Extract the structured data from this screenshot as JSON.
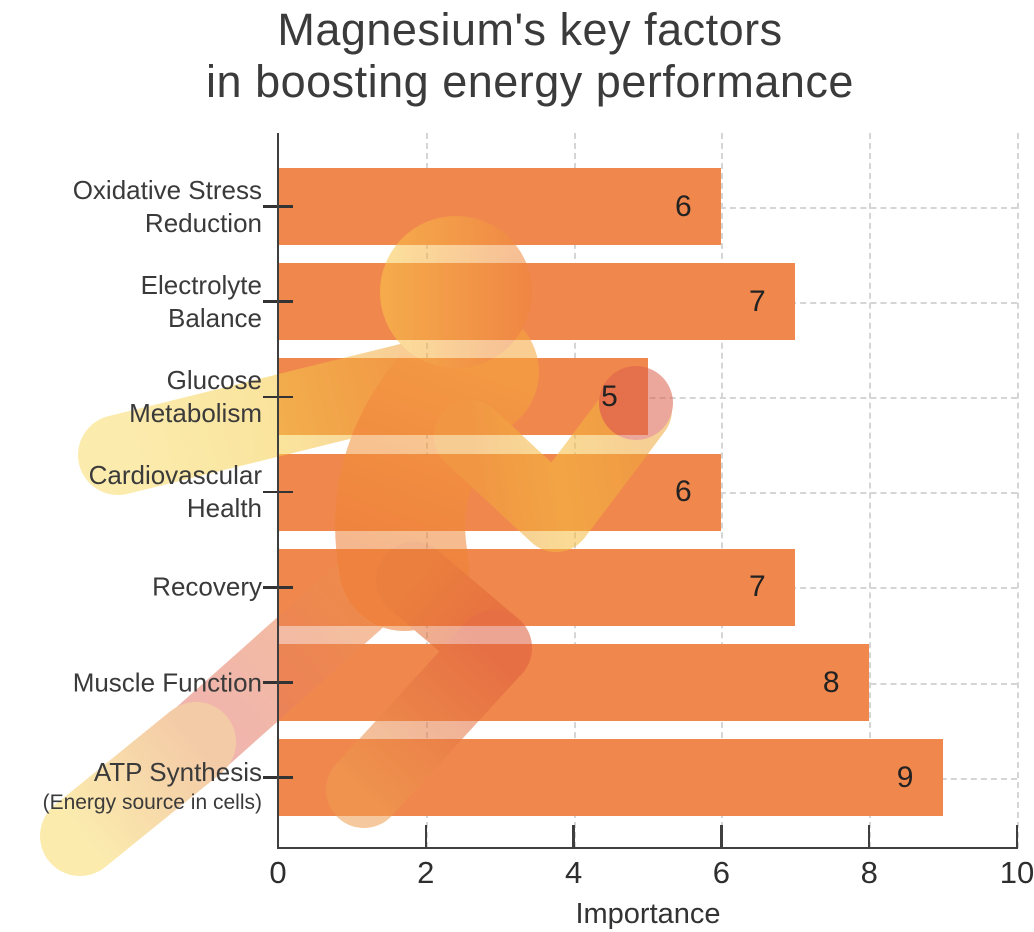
{
  "title": {
    "line1": "Magnesium's key factors",
    "line2": "in boosting energy performance"
  },
  "chart_data": {
    "type": "bar",
    "orientation": "horizontal",
    "title": "Magnesium's key factors in boosting energy performance",
    "xlabel": "Importance",
    "xlim": [
      0,
      10
    ],
    "xticks": [
      0,
      2,
      4,
      6,
      8,
      10
    ],
    "grid": {
      "style": "dashed",
      "vertical": true,
      "horizontal": true,
      "color": "#d5d5d5"
    },
    "bar_color": "#F0884D",
    "value_label_color": "#222222",
    "axis_color": "#3f3f3f",
    "rows": [
      {
        "category": "Oxidative Stress Reduction",
        "sublabel": "",
        "value": 6
      },
      {
        "category": "Electrolyte Balance",
        "sublabel": "",
        "value": 7
      },
      {
        "category": "Glucose Metabolism",
        "sublabel": "",
        "value": 5
      },
      {
        "category": "Cardiovascular Health",
        "sublabel": "",
        "value": 6
      },
      {
        "category": "Recovery",
        "sublabel": "",
        "value": 7
      },
      {
        "category": "Muscle Function",
        "sublabel": "",
        "value": 8
      },
      {
        "category": "ATP Synthesis",
        "sublabel": "(Energy source in cells)",
        "value": 9
      }
    ]
  },
  "decoration": {
    "name": "running-person-silhouette",
    "opacity": 0.55,
    "colors": {
      "yellow": "#F8DC6C",
      "gold": "#F6CE4D",
      "orange": "#F2953B",
      "deep_orange": "#EE7E33",
      "red_fist": "#DC604A",
      "pink_thigh": "#E4766E"
    }
  }
}
